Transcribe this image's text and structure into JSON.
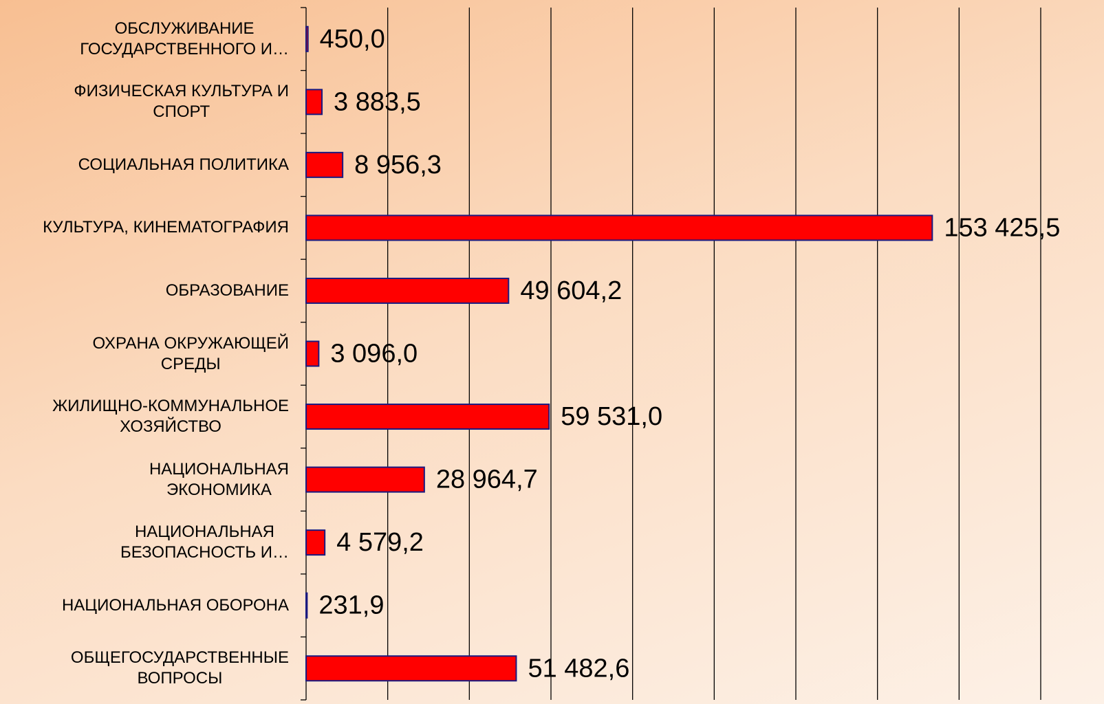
{
  "chart_data": {
    "type": "barh",
    "categories": [
      "ОБСЛУЖИВАНИЕ\nГОСУДАРСТВЕННОГО  И…",
      "ФИЗИЧЕСКАЯ КУЛЬТУРА И\nСПОРТ",
      "СОЦИАЛЬНАЯ ПОЛИТИКА",
      "КУЛЬТУРА, КИНЕМАТОГРАФИЯ",
      "ОБРАЗОВАНИЕ",
      "ОХРАНА ОКРУЖАЮЩЕЙ\nСРЕДЫ",
      "ЖИЛИЩНО-КОММУНАЛЬНОЕ\nХОЗЯЙСТВО",
      "НАЦИОНАЛЬНАЯ\nЭКОНОМИКА",
      "НАЦИОНАЛЬНАЯ\nБЕЗОПАСНОСТЬ  И…",
      "НАЦИОНАЛЬНАЯ  ОБОРОНА",
      "ОБЩЕГОСУДАРСТВЕННЫЕ\nВОПРОСЫ"
    ],
    "values": [
      450.0,
      3883.5,
      8956.3,
      153425.5,
      49604.2,
      3096.0,
      59531.0,
      28964.7,
      4579.2,
      231.9,
      51482.6
    ],
    "value_labels": [
      "450,0",
      "3 883,5",
      "8 956,3",
      "153 425,5",
      "49 604,2",
      "3 096,0",
      "59 531,0",
      "28 964,7",
      "4 579,2",
      "231,9",
      "51 482,6"
    ],
    "color": "#ff0000",
    "xlim": [
      0,
      180000
    ],
    "xticks": [
      0,
      20000,
      40000,
      60000,
      80000,
      100000,
      120000,
      140000,
      160000,
      180000
    ],
    "grid": true
  }
}
